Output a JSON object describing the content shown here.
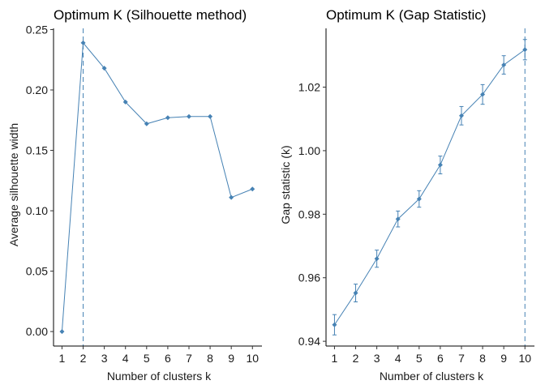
{
  "theme": {
    "series_color": "#4682b4",
    "axis_color": "#000000",
    "text_color": "#1a1a1a"
  },
  "chart_data": [
    {
      "type": "line",
      "title": "Optimum K (Silhouette method)",
      "xlabel": "Number of clusters k",
      "ylabel": "Average silhouette width",
      "x": [
        1,
        2,
        3,
        4,
        5,
        6,
        7,
        8,
        9,
        10
      ],
      "y": [
        0.0,
        0.239,
        0.218,
        0.19,
        0.172,
        0.177,
        0.178,
        0.178,
        0.111,
        0.118
      ],
      "xlim": [
        0.6,
        10.45
      ],
      "ylim": [
        -0.012,
        0.251
      ],
      "xticks": [
        1,
        2,
        3,
        4,
        5,
        6,
        7,
        8,
        9,
        10
      ],
      "xtick_labels": [
        "1",
        "2",
        "3",
        "4",
        "5",
        "6",
        "7",
        "8",
        "9",
        "10"
      ],
      "yticks": [
        0.0,
        0.05,
        0.1,
        0.15,
        0.2,
        0.25
      ],
      "ytick_labels": [
        "0.00",
        "0.05",
        "0.10",
        "0.15",
        "0.20",
        "0.25"
      ],
      "vline": {
        "x": 2,
        "style": "dashed"
      },
      "grid": false,
      "markers": "diamond"
    },
    {
      "type": "line",
      "title": "Optimum K (Gap Statistic)",
      "xlabel": "Number of clusters k",
      "ylabel": "Gap statistic (k)",
      "x": [
        1,
        2,
        3,
        4,
        5,
        6,
        7,
        8,
        9,
        10
      ],
      "y": [
        0.9452,
        0.9552,
        0.966,
        0.9785,
        0.9848,
        0.9955,
        1.011,
        1.0177,
        1.027,
        1.0318
      ],
      "error": [
        0.0032,
        0.0028,
        0.0027,
        0.0025,
        0.0026,
        0.0028,
        0.0029,
        0.0031,
        0.0029,
        0.0032
      ],
      "xlim": [
        0.6,
        10.45
      ],
      "ylim": [
        0.9385,
        1.0385
      ],
      "xticks": [
        1,
        2,
        3,
        4,
        5,
        6,
        7,
        8,
        9,
        10
      ],
      "xtick_labels": [
        "1",
        "2",
        "3",
        "4",
        "5",
        "6",
        "7",
        "8",
        "9",
        "10"
      ],
      "yticks": [
        0.94,
        0.96,
        0.98,
        1.0,
        1.02
      ],
      "ytick_labels": [
        "0.94",
        "0.96",
        "0.98",
        "1.00",
        "1.02"
      ],
      "vline": {
        "x": 10,
        "style": "dashed"
      },
      "grid": false,
      "markers": "diamond"
    }
  ]
}
